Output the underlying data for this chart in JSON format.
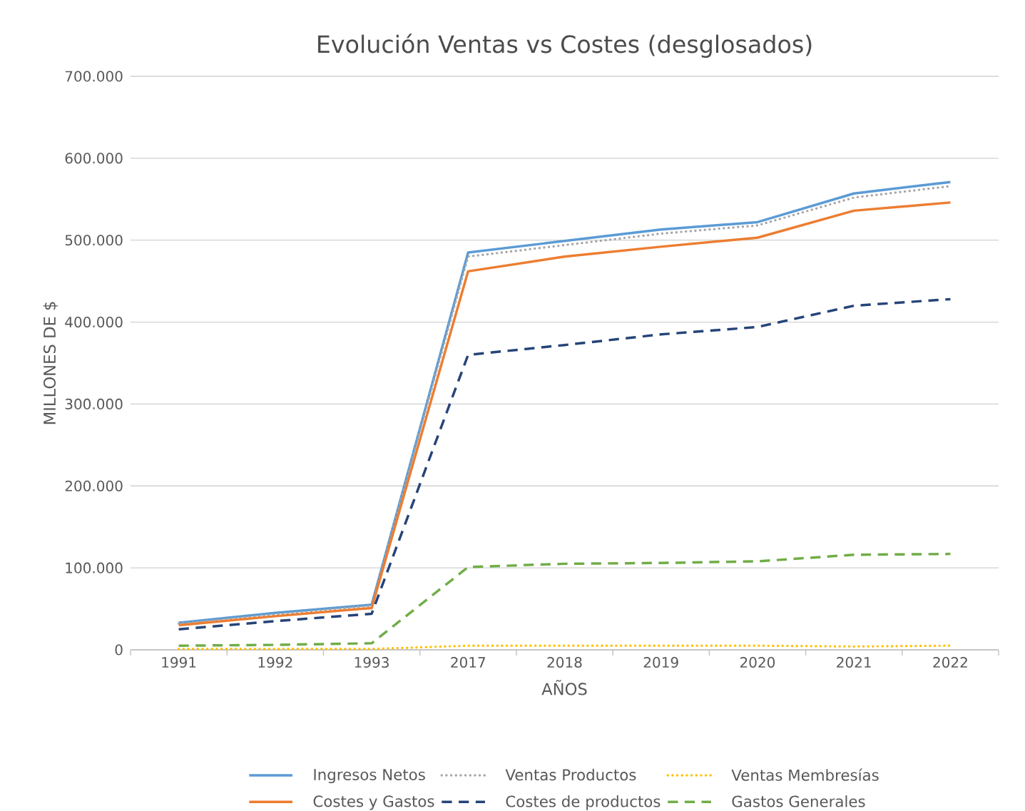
{
  "chart_data": {
    "type": "line",
    "title": "Evolución Ventas vs Costes (desglosados)",
    "xlabel": "AÑOS",
    "ylabel": "MILLONES DE $",
    "categories": [
      "1991",
      "1992",
      "1993",
      "2017",
      "2018",
      "2019",
      "2020",
      "2021",
      "2022"
    ],
    "series": [
      {
        "name": "Ingresos Netos",
        "color": "#5b9bd5",
        "line_style": "solid",
        "values": [
          33000,
          45000,
          55000,
          485000,
          499000,
          513000,
          522000,
          557000,
          571000
        ]
      },
      {
        "name": "Ventas Productos",
        "color": "#a5a5a5",
        "line_style": "dotted",
        "values": [
          32000,
          43000,
          54000,
          480000,
          494000,
          508000,
          518000,
          552000,
          566000
        ]
      },
      {
        "name": "Ventas Membresías",
        "color": "#ffc000",
        "line_style": "dotted",
        "values": [
          1000,
          1000,
          1000,
          5000,
          5000,
          5000,
          5000,
          4000,
          5000
        ]
      },
      {
        "name": "Costes y Gastos",
        "color": "#ed7d31",
        "line_style": "solid",
        "values": [
          30000,
          41000,
          51000,
          462000,
          480000,
          492000,
          503000,
          536000,
          546000
        ]
      },
      {
        "name": "Costes de productos",
        "color": "#264478",
        "line_style": "dashed",
        "values": [
          25000,
          35000,
          44000,
          360000,
          372000,
          385000,
          394000,
          420000,
          428000
        ]
      },
      {
        "name": "Gastos Generales",
        "color": "#70ad47",
        "line_style": "dashed",
        "values": [
          5000,
          6000,
          8000,
          101000,
          105000,
          106000,
          108000,
          116000,
          117000
        ]
      }
    ],
    "ylim": [
      0,
      700000
    ],
    "yticks": [
      0,
      {
        "value": 100000,
        "label": "100.000"
      },
      {
        "value": 200000,
        "label": "200.000"
      },
      {
        "value": 300000,
        "label": "300.000"
      },
      {
        "value": 400000,
        "label": "400.000"
      },
      {
        "value": 500000,
        "label": "500.000"
      },
      {
        "value": 600000,
        "label": "600.000"
      },
      {
        "value": 700000,
        "label": "700.000"
      }
    ],
    "grid": "y",
    "legend": "bottom"
  }
}
